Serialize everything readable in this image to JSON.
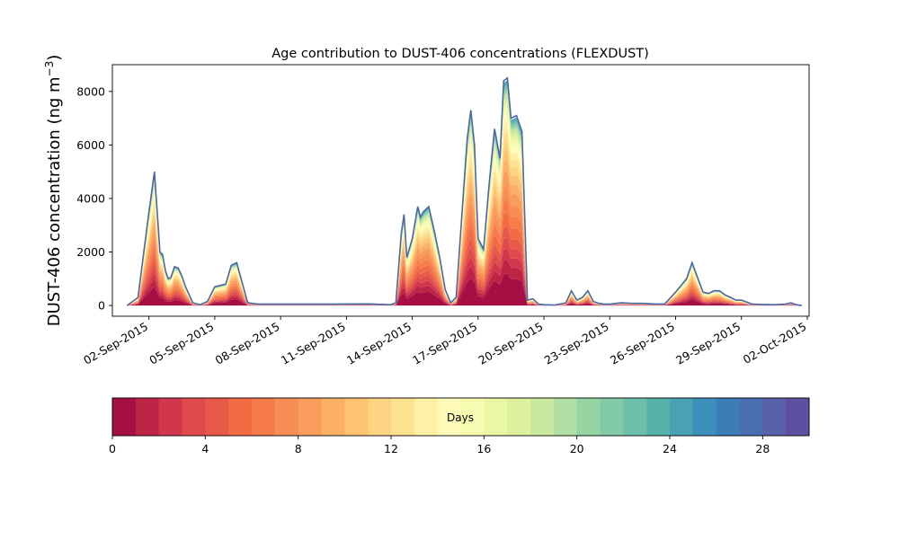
{
  "chart_data": {
    "type": "area",
    "title": "Age contribution to DUST-406 concentrations (FLEXDUST)",
    "ylabel": "DUST-406 concentration (ng m",
    "ylabel_superscript": "−3",
    "ylabel_close": ")",
    "xlabel": "",
    "ylim": [
      -400,
      9000
    ],
    "xlim": [
      "2015-08-31T08:00",
      "2015-10-02T02:00"
    ],
    "yticks": [
      0,
      2000,
      4000,
      6000,
      8000
    ],
    "xticks": [
      "02-Sep-2015",
      "05-Sep-2015",
      "08-Sep-2015",
      "11-Sep-2015",
      "14-Sep-2015",
      "17-Sep-2015",
      "20-Sep-2015",
      "23-Sep-2015",
      "26-Sep-2015",
      "29-Sep-2015",
      "02-Oct-2015"
    ],
    "grid": false,
    "total_line_color": "#4a67a6",
    "x": [
      "2015-09-01T00:00",
      "2015-09-01T12:00",
      "2015-09-02T00:00",
      "2015-09-02T06:00",
      "2015-09-02T12:00",
      "2015-09-02T15:00",
      "2015-09-02T18:00",
      "2015-09-02T21:00",
      "2015-09-03T00:00",
      "2015-09-03T04:00",
      "2015-09-03T08:00",
      "2015-09-03T12:00",
      "2015-09-03T16:00",
      "2015-09-04T00:00",
      "2015-09-04T08:00",
      "2015-09-04T16:00",
      "2015-09-05T00:00",
      "2015-09-05T12:00",
      "2015-09-05T18:00",
      "2015-09-06T00:00",
      "2015-09-06T12:00",
      "2015-09-07T00:00",
      "2015-09-08T00:00",
      "2015-09-10T00:00",
      "2015-09-12T00:00",
      "2015-09-13T00:00",
      "2015-09-13T06:00",
      "2015-09-13T12:00",
      "2015-09-13T15:00",
      "2015-09-13T18:00",
      "2015-09-14T00:00",
      "2015-09-14T06:00",
      "2015-09-14T09:00",
      "2015-09-14T12:00",
      "2015-09-14T18:00",
      "2015-09-15T00:00",
      "2015-09-15T06:00",
      "2015-09-15T12:00",
      "2015-09-15T18:00",
      "2015-09-16T00:00",
      "2015-09-16T12:00",
      "2015-09-16T16:00",
      "2015-09-16T20:00",
      "2015-09-17T00:00",
      "2015-09-17T06:00",
      "2015-09-17T12:00",
      "2015-09-17T18:00",
      "2015-09-18T00:00",
      "2015-09-18T04:00",
      "2015-09-18T08:00",
      "2015-09-18T12:00",
      "2015-09-18T18:00",
      "2015-09-19T00:00",
      "2015-09-19T06:00",
      "2015-09-19T12:00",
      "2015-09-19T18:00",
      "2015-09-20T00:00",
      "2015-09-20T12:00",
      "2015-09-21T00:00",
      "2015-09-21T06:00",
      "2015-09-21T12:00",
      "2015-09-21T18:00",
      "2015-09-22T00:00",
      "2015-09-22T06:00",
      "2015-09-22T12:00",
      "2015-09-22T18:00",
      "2015-09-23T00:00",
      "2015-09-23T12:00",
      "2015-09-24T00:00",
      "2015-09-24T12:00",
      "2015-09-25T00:00",
      "2015-09-25T12:00",
      "2015-09-26T00:00",
      "2015-09-26T12:00",
      "2015-09-26T18:00",
      "2015-09-27T00:00",
      "2015-09-27T06:00",
      "2015-09-27T12:00",
      "2015-09-27T18:00",
      "2015-09-28T00:00",
      "2015-09-28T06:00",
      "2015-09-28T12:00",
      "2015-09-28T18:00",
      "2015-09-29T00:00",
      "2015-09-29T12:00",
      "2015-09-30T00:00",
      "2015-09-30T12:00",
      "2015-10-01T00:00",
      "2015-10-01T06:00",
      "2015-10-01T12:00",
      "2015-10-01T18:00"
    ],
    "total": [
      0,
      300,
      3500,
      5000,
      2000,
      1900,
      1300,
      1000,
      1050,
      1450,
      1400,
      1100,
      700,
      100,
      30,
      150,
      700,
      800,
      1500,
      1600,
      100,
      50,
      50,
      50,
      60,
      30,
      100,
      2700,
      3400,
      1800,
      2500,
      3700,
      3300,
      3500,
      3700,
      2800,
      1800,
      600,
      100,
      300,
      6200,
      7300,
      6000,
      2500,
      2100,
      4500,
      6600,
      5500,
      8400,
      8500,
      7000,
      7100,
      6500,
      200,
      250,
      50,
      30,
      20,
      100,
      550,
      200,
      300,
      550,
      150,
      80,
      50,
      50,
      100,
      80,
      80,
      60,
      50,
      500,
      1000,
      1600,
      1050,
      500,
      450,
      550,
      550,
      400,
      300,
      200,
      200,
      50,
      40,
      30,
      50,
      100,
      30,
      0
    ],
    "series_shares": [
      0.14,
      0.06,
      0.05,
      0.05,
      0.05,
      0.06,
      0.06,
      0.06,
      0.06,
      0.05,
      0.05,
      0.04,
      0.04,
      0.04,
      0.03,
      0.03,
      0.02,
      0.02,
      0.02,
      0.01,
      0.01,
      0.01,
      0.01,
      0.01,
      0.01,
      0.0,
      0.0,
      0.0,
      0.0,
      0.0
    ],
    "colorbar": {
      "label": "Days",
      "range": [
        0,
        30
      ],
      "ticks": [
        0,
        4,
        8,
        12,
        16,
        20,
        24,
        28
      ],
      "colors": [
        "#a50f44",
        "#bd2547",
        "#d2364c",
        "#df4a4d",
        "#e75a4a",
        "#f26b45",
        "#f67c4b",
        "#f88e55",
        "#fa9d5c",
        "#fcb067",
        "#fdc272",
        "#fed381",
        "#fee292",
        "#fff0a5",
        "#fffcbb",
        "#f6fbb2",
        "#ebf7a2",
        "#dcf09e",
        "#c8e8a0",
        "#b0dea3",
        "#97d4a4",
        "#81caa5",
        "#6cbfa8",
        "#59b2aa",
        "#4aa1b1",
        "#3c8fb8",
        "#3b7eb7",
        "#486db0",
        "#5861a9",
        "#5e4fa2"
      ]
    }
  }
}
